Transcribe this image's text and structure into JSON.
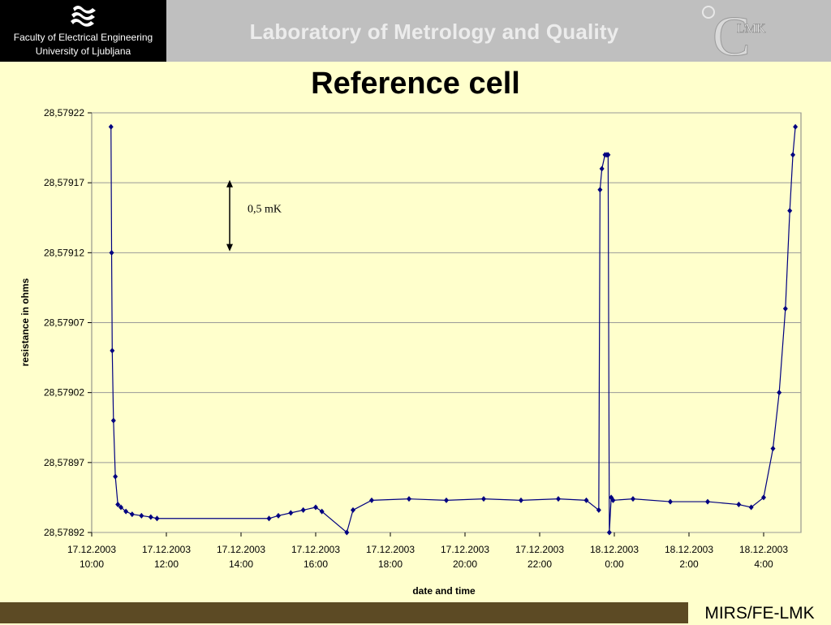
{
  "header": {
    "faculty": "Faculty of Electrical Engineering",
    "university": "University of Ljubljana",
    "lab_title": "Laboratory of Metrology and Quality",
    "lmk_logo_text": "LMK"
  },
  "slide": {
    "title": "Reference cell"
  },
  "footer": {
    "label": "MIRS/FE-LMK"
  },
  "colors": {
    "series": "#000080",
    "plot_area": "#ffffcc",
    "footer_bar": "#5c4a24",
    "header_bar": "#bfbfbf"
  },
  "chart_data": {
    "type": "line",
    "title": "",
    "xlabel": "date and time",
    "ylabel": "resistance in ohms",
    "ylim": [
      28.57892,
      28.57922
    ],
    "xlim": [
      "2003-12-17T10:00",
      "2003-12-18T05:00"
    ],
    "y_ticks": [
      "28,57892",
      "28,57897",
      "28,57902",
      "28,57907",
      "28,57912",
      "28,57917",
      "28,57922"
    ],
    "x_ticks": [
      {
        "date": "17.12.2003",
        "time": "10:00"
      },
      {
        "date": "17.12.2003",
        "time": "12:00"
      },
      {
        "date": "17.12.2003",
        "time": "14:00"
      },
      {
        "date": "17.12.2003",
        "time": "16:00"
      },
      {
        "date": "17.12.2003",
        "time": "18:00"
      },
      {
        "date": "17.12.2003",
        "time": "20:00"
      },
      {
        "date": "17.12.2003",
        "time": "22:00"
      },
      {
        "date": "18.12.2003",
        "time": "0:00"
      },
      {
        "date": "18.12.2003",
        "time": "2:00"
      },
      {
        "date": "18.12.2003",
        "time": "4:00"
      }
    ],
    "grid": "horizontal",
    "legend": "none",
    "annotation": {
      "text": "0,5 mK",
      "y_from": 28.579172,
      "y_to": 28.579121
    },
    "series": [
      {
        "x": [
          "2003-12-17T10:31",
          "2003-12-17T10:32",
          "2003-12-17T10:33",
          "2003-12-17T10:35",
          "2003-12-17T10:38",
          "2003-12-17T10:42",
          "2003-12-17T10:47",
          "2003-12-17T10:55",
          "2003-12-17T11:05",
          "2003-12-17T11:20",
          "2003-12-17T11:35",
          "2003-12-17T11:45",
          "2003-12-17T14:45",
          "2003-12-17T15:00",
          "2003-12-17T15:20",
          "2003-12-17T15:40",
          "2003-12-17T16:00",
          "2003-12-17T16:10",
          "2003-12-17T16:50",
          "2003-12-17T17:00",
          "2003-12-17T17:30",
          "2003-12-17T18:30",
          "2003-12-17T19:30",
          "2003-12-17T20:30",
          "2003-12-17T21:30",
          "2003-12-17T22:30",
          "2003-12-17T23:15",
          "2003-12-17T23:35",
          "2003-12-17T23:37",
          "2003-12-17T23:40",
          "2003-12-17T23:45",
          "2003-12-17T23:48",
          "2003-12-17T23:50",
          "2003-12-17T23:52",
          "2003-12-17T23:55",
          "2003-12-17T23:58",
          "2003-12-18T00:30",
          "2003-12-18T01:30",
          "2003-12-18T02:30",
          "2003-12-18T03:20",
          "2003-12-18T03:40",
          "2003-12-18T04:00",
          "2003-12-18T04:15",
          "2003-12-18T04:25",
          "2003-12-18T04:35",
          "2003-12-18T04:42",
          "2003-12-18T04:47",
          "2003-12-18T04:51"
        ],
        "y": [
          28.57921,
          28.57912,
          28.57905,
          28.579,
          28.57896,
          28.57894,
          28.578938,
          28.578935,
          28.578933,
          28.578932,
          28.578931,
          28.57893,
          28.57893,
          28.578932,
          28.578934,
          28.578936,
          28.578938,
          28.578935,
          28.57892,
          28.578936,
          28.578943,
          28.578944,
          28.578943,
          28.578944,
          28.578943,
          28.578944,
          28.578943,
          28.578936,
          28.579165,
          28.57918,
          28.57919,
          28.57919,
          28.57919,
          28.57892,
          28.578945,
          28.578943,
          28.578944,
          28.578942,
          28.578942,
          28.57894,
          28.578938,
          28.578945,
          28.57898,
          28.57902,
          28.57908,
          28.57915,
          28.57919,
          28.57921
        ]
      }
    ]
  }
}
